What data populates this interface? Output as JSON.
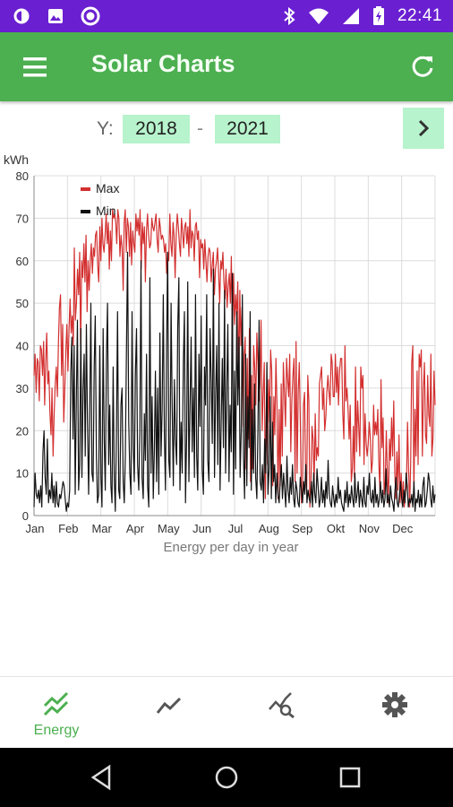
{
  "status_bar": {
    "time": "22:41",
    "icons": [
      "data-saver-icon",
      "image-icon",
      "circle-app-icon",
      "bluetooth-icon",
      "wifi-icon",
      "signal-icon",
      "battery-icon"
    ]
  },
  "app_bar": {
    "title": "Solar Charts",
    "icons": [
      "menu-icon",
      "refresh-icon"
    ]
  },
  "year_range": {
    "label": "Y:",
    "from": "2018",
    "separator": "-",
    "to": "2021",
    "next_icon": "chevron-right-icon"
  },
  "colors": {
    "accent": "#4caf50",
    "year_box": "#b7f3cc",
    "max_series": "#d32f2f",
    "min_series": "#111111",
    "status_bar": "#6a1fd1"
  },
  "chart_data": {
    "type": "line",
    "ylabel": "kWh",
    "xlabel": "Energy per day in year",
    "ylim": [
      0,
      80
    ],
    "y_ticks": [
      "0",
      "10",
      "20",
      "30",
      "40",
      "50",
      "60",
      "70",
      "80"
    ],
    "x_ticks": [
      "Jan",
      "Feb",
      "Mar",
      "Apr",
      "May",
      "Jun",
      "Jul",
      "Aug",
      "Sep",
      "Okt",
      "Nov",
      "Dec"
    ],
    "grid": true,
    "legend": "top-left",
    "series": [
      {
        "name": "Max",
        "color": "#d32f2f",
        "values": [
          33,
          38,
          29,
          37,
          36,
          27,
          40,
          39,
          33,
          41,
          26,
          36,
          43,
          31,
          34,
          24,
          19,
          30,
          14,
          24,
          31,
          35,
          28,
          41,
          49,
          52,
          33,
          45,
          22,
          30,
          39,
          45,
          34,
          44,
          51,
          43,
          47,
          40,
          63,
          46,
          50,
          58,
          52,
          62,
          39,
          60,
          56,
          64,
          55,
          66,
          48,
          60,
          53,
          60,
          64,
          57,
          63,
          61,
          66,
          67,
          59,
          55,
          68,
          60,
          70,
          64,
          62,
          66,
          71,
          64,
          69,
          58,
          67,
          60,
          72,
          70,
          71,
          69,
          64,
          72,
          70,
          61,
          66,
          63,
          53,
          69,
          72,
          62,
          70,
          68,
          61,
          69,
          59,
          67,
          64,
          62,
          71,
          67,
          70,
          66,
          72,
          58,
          69,
          64,
          68,
          55,
          67,
          71,
          66,
          63,
          64,
          70,
          68,
          67,
          69,
          71,
          65,
          62,
          70,
          68,
          65,
          66,
          65,
          62,
          64,
          57,
          62,
          60,
          71,
          64,
          61,
          69,
          66,
          56,
          66,
          71,
          68,
          64,
          61,
          70,
          67,
          63,
          68,
          69,
          64,
          68,
          61,
          72,
          63,
          67,
          66,
          60,
          68,
          69,
          65,
          67,
          56,
          65,
          63,
          64,
          58,
          65,
          60,
          55,
          61,
          63,
          62,
          55,
          59,
          62,
          52,
          58,
          60,
          63,
          57,
          50,
          60,
          58,
          62,
          55,
          51,
          58,
          49,
          54,
          57,
          50,
          61,
          42,
          57,
          45,
          52,
          47,
          55,
          30,
          53,
          40,
          49,
          21,
          38,
          42,
          11,
          37,
          18,
          44,
          8,
          33,
          11,
          40,
          35,
          26,
          43,
          36,
          27,
          31,
          46,
          20,
          29,
          36,
          4,
          27,
          12,
          32,
          22,
          39,
          34,
          7,
          28,
          19,
          37,
          26,
          4,
          25,
          7,
          31,
          14,
          36,
          29,
          21,
          37,
          32,
          28,
          38,
          15,
          27,
          33,
          37,
          8,
          41,
          10,
          29,
          36,
          22,
          3,
          5,
          26,
          29,
          9,
          6,
          33,
          27,
          2,
          7,
          21,
          18,
          7,
          24,
          13,
          16,
          14,
          31,
          33,
          35,
          25,
          30,
          20,
          23,
          29,
          33,
          29,
          26,
          38,
          36,
          28,
          28,
          38,
          29,
          35,
          26,
          34,
          37,
          37,
          24,
          18,
          40,
          27,
          30,
          25,
          18,
          26,
          8,
          11,
          21,
          9,
          35,
          15,
          27,
          21,
          14,
          35,
          30,
          33,
          12,
          24,
          17,
          14,
          17,
          22,
          18,
          10,
          13,
          26,
          19,
          22,
          19,
          25,
          12,
          6,
          32,
          16,
          23,
          5,
          8,
          20,
          10,
          3,
          18,
          13,
          23,
          14,
          27,
          10,
          4,
          15,
          6,
          19,
          3,
          10,
          3,
          8,
          2,
          5,
          7,
          22,
          11,
          2,
          12,
          36,
          40,
          5,
          25,
          14,
          34,
          12,
          38,
          35,
          39,
          14,
          30,
          36,
          19,
          17,
          33,
          24,
          21,
          38,
          14,
          18,
          34,
          26
        ]
      },
      {
        "name": "Min",
        "color": "#111111",
        "values": [
          2,
          10,
          5,
          4,
          6,
          3,
          7,
          2,
          15,
          20,
          9,
          5,
          18,
          3,
          6,
          4,
          10,
          3,
          7,
          2,
          8,
          3,
          2,
          5,
          4,
          6,
          8,
          7,
          4,
          1,
          3,
          2,
          6,
          34,
          42,
          18,
          40,
          5,
          28,
          46,
          6,
          12,
          44,
          9,
          30,
          38,
          14,
          45,
          22,
          5,
          24,
          50,
          10,
          8,
          35,
          47,
          14,
          3,
          5,
          40,
          9,
          2,
          44,
          18,
          6,
          37,
          50,
          12,
          26,
          7,
          3,
          35,
          9,
          1,
          20,
          48,
          6,
          4,
          26,
          30,
          8,
          3,
          14,
          40,
          62,
          22,
          10,
          5,
          48,
          16,
          8,
          33,
          44,
          12,
          6,
          20,
          60,
          9,
          4,
          24,
          13,
          38,
          7,
          2,
          56,
          10,
          28,
          4,
          15,
          34,
          8,
          30,
          5,
          43,
          14,
          25,
          52,
          19,
          6,
          40,
          62,
          13,
          9,
          50,
          26,
          7,
          32,
          18,
          12,
          44,
          56,
          6,
          22,
          10,
          36,
          48,
          3,
          19,
          55,
          8,
          25,
          42,
          15,
          30,
          9,
          52,
          14,
          6,
          38,
          21,
          47,
          11,
          5,
          35,
          26,
          52,
          13,
          8,
          44,
          32,
          17,
          58,
          9,
          28,
          40,
          12,
          50,
          6,
          22,
          37,
          16,
          53,
          10,
          30,
          45,
          8,
          26,
          15,
          57,
          5,
          34,
          11,
          48,
          26,
          42,
          9,
          20,
          52,
          14,
          4,
          38,
          7,
          28,
          16,
          48,
          6,
          25,
          10,
          31,
          9,
          4,
          20,
          46,
          8,
          6,
          12,
          3,
          18,
          10,
          36,
          5,
          11,
          28,
          4,
          22,
          8,
          12,
          3,
          10,
          5,
          3,
          8,
          12,
          4,
          10,
          6,
          2,
          14,
          6,
          3,
          9,
          5,
          12,
          4,
          2,
          8,
          6,
          3,
          2,
          9,
          6,
          3,
          8,
          5,
          12,
          3,
          6,
          4,
          3,
          8,
          2,
          10,
          5,
          3,
          11,
          7,
          2,
          4,
          9,
          3,
          6,
          2,
          8,
          4,
          13,
          5,
          3,
          2,
          7,
          4,
          2,
          5,
          3,
          9,
          4,
          6,
          3,
          2,
          1,
          6,
          3,
          8,
          2,
          5,
          3,
          7,
          4,
          2,
          10,
          3,
          5,
          8,
          2,
          6,
          4,
          2,
          9,
          3,
          2,
          7,
          5,
          10,
          4,
          3,
          6,
          2,
          9,
          3,
          5,
          2,
          4,
          8,
          3,
          6,
          2,
          4,
          11,
          3,
          5,
          2,
          7,
          4,
          3,
          1,
          6,
          9,
          3,
          2,
          5,
          8,
          4,
          2,
          6,
          3,
          10,
          7,
          2,
          4,
          3,
          5,
          2,
          8,
          1,
          4,
          3,
          6,
          2,
          5,
          2,
          7,
          9,
          2,
          3,
          6,
          10,
          8,
          4,
          2,
          7,
          3,
          5
        ]
      }
    ]
  },
  "bottom_nav": {
    "items": [
      {
        "label": "Energy",
        "icon": "energy-chart-icon",
        "active": true
      },
      {
        "label": "",
        "icon": "line-chart-icon",
        "active": false
      },
      {
        "label": "",
        "icon": "chart-search-icon",
        "active": false
      },
      {
        "label": "",
        "icon": "settings-icon",
        "active": false
      }
    ]
  },
  "system_nav": {
    "icons": [
      "back-icon",
      "home-icon",
      "recents-icon"
    ]
  }
}
